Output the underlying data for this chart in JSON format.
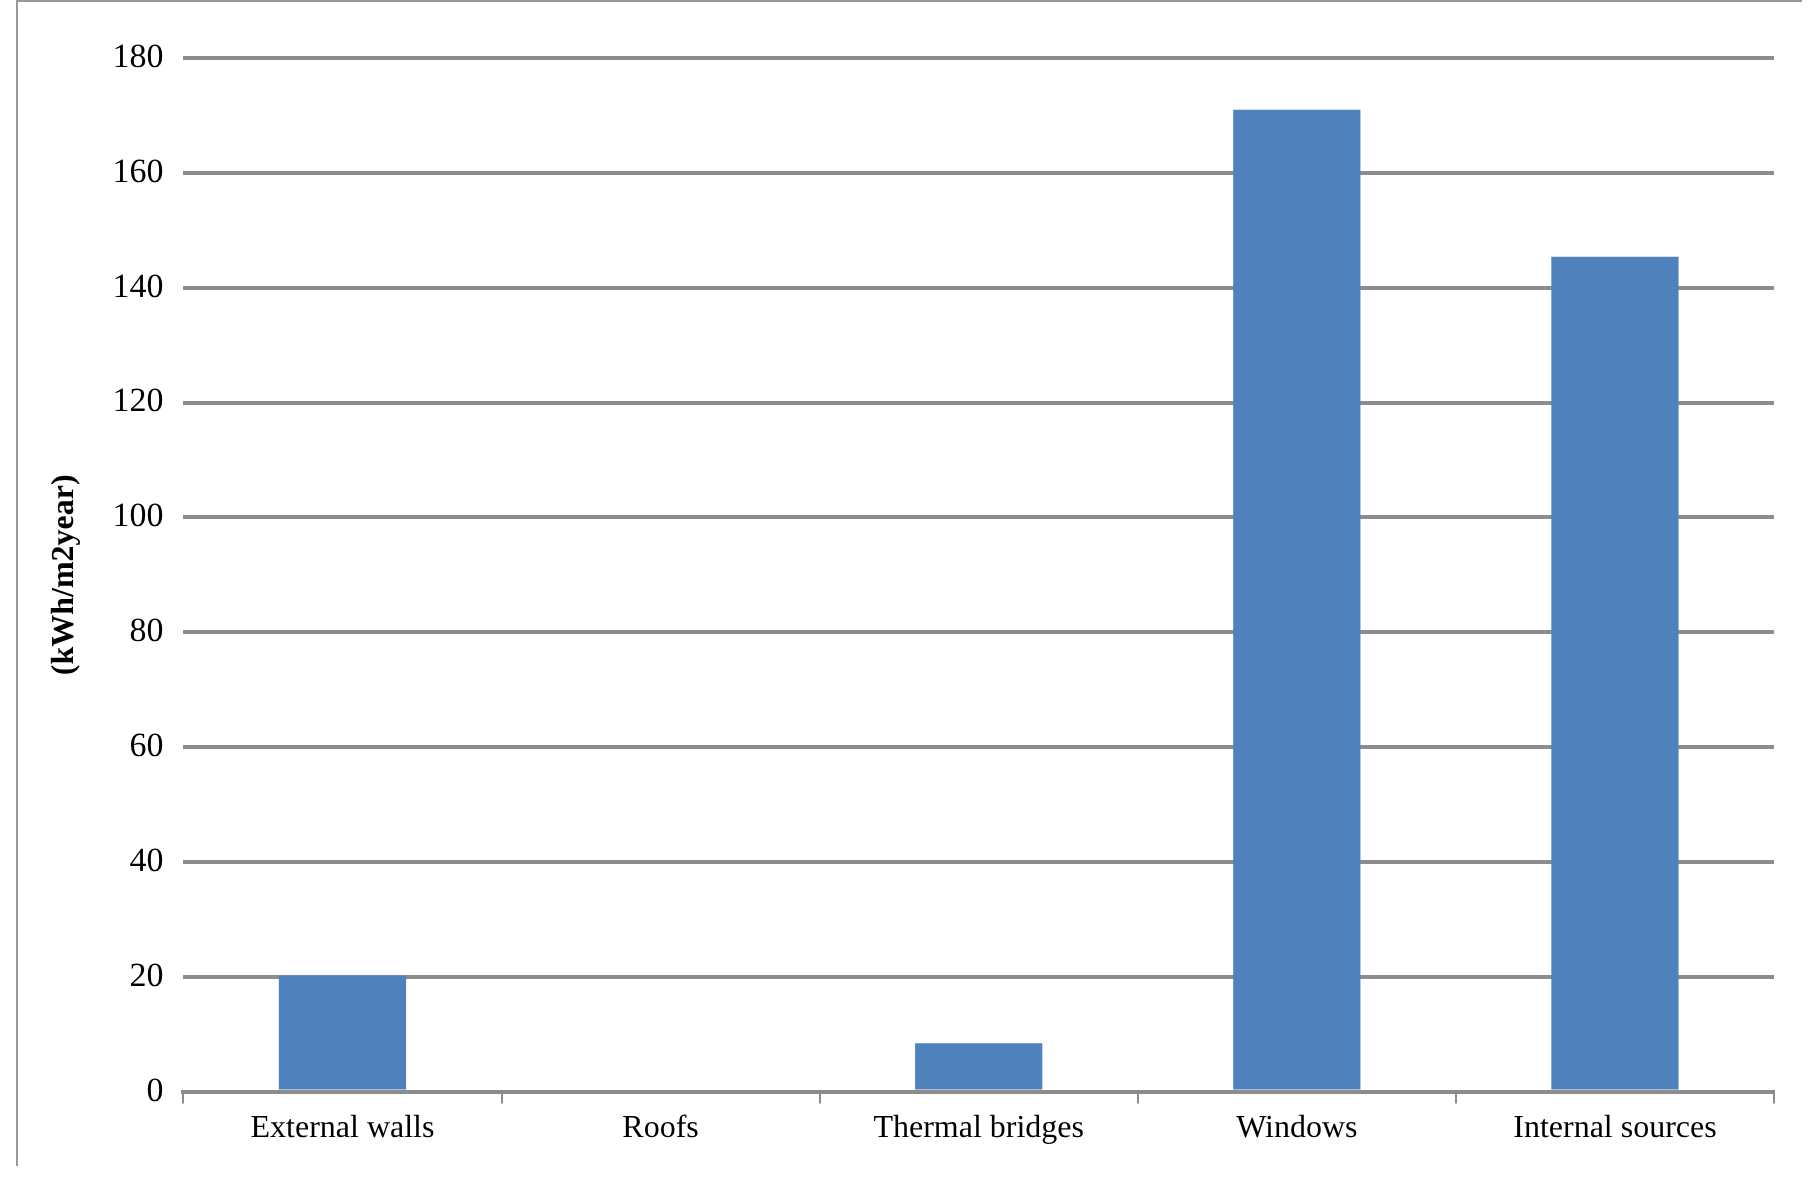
{
  "chart_data": {
    "type": "bar",
    "ylabel": "(kWh/m2year)",
    "categories": [
      "External walls",
      "Roofs",
      "Thermal bridges",
      "Windows",
      "Internal sources"
    ],
    "values": [
      20.2,
      0,
      8.4,
      171,
      145.4
    ],
    "color": "#4f81bd",
    "ylim": [
      0,
      180
    ],
    "yticks": [
      0,
      20,
      40,
      60,
      80,
      100,
      120,
      140,
      160,
      180
    ],
    "grid": "y",
    "legend": false
  }
}
